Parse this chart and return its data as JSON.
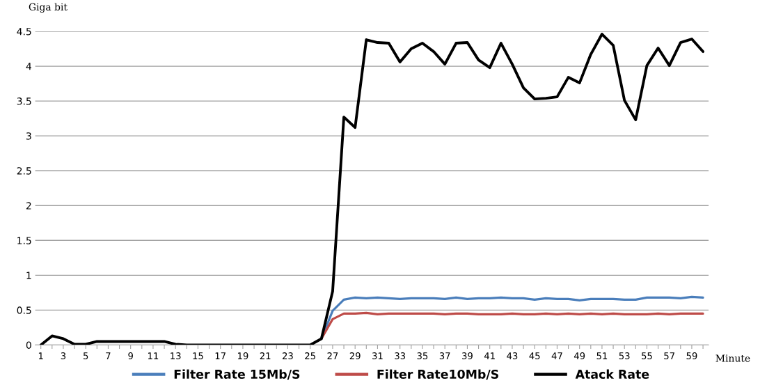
{
  "chart_data": {
    "type": "line",
    "ylabel": "Giga bit",
    "xlabel": "Minute",
    "categories": [
      "1",
      null,
      "3",
      null,
      "5",
      null,
      "7",
      null,
      "9",
      null,
      "11",
      null,
      "13",
      null,
      "15",
      null,
      "17",
      null,
      "19",
      null,
      "21",
      null,
      "23",
      null,
      "25",
      null,
      "27",
      null,
      "29",
      null,
      "31",
      null,
      "33",
      null,
      "35",
      null,
      "37",
      null,
      "39",
      null,
      "41",
      null,
      "43",
      null,
      "45",
      null,
      "47",
      null,
      "49",
      null,
      "51",
      null,
      "53",
      null,
      "55",
      null,
      "57",
      null,
      "59",
      null
    ],
    "series": [
      {
        "name": "Filter Rate 15Mb/S",
        "color": "#4a7ebb",
        "values": [
          null,
          null,
          null,
          null,
          null,
          null,
          null,
          null,
          null,
          null,
          null,
          null,
          null,
          null,
          null,
          null,
          null,
          null,
          null,
          null,
          null,
          null,
          null,
          null,
          null,
          0.09,
          0.49,
          0.65,
          0.68,
          0.67,
          0.68,
          0.67,
          0.66,
          0.67,
          0.67,
          0.67,
          0.66,
          0.68,
          0.66,
          0.67,
          0.67,
          0.68,
          0.67,
          0.67,
          0.65,
          0.67,
          0.66,
          0.66,
          0.64,
          0.66,
          0.66,
          0.66,
          0.65,
          0.65,
          0.68,
          0.68,
          0.68,
          0.67,
          0.69,
          0.68
        ]
      },
      {
        "name": "Filter Rate10Mb/S",
        "color": "#be4b48",
        "values": [
          null,
          null,
          null,
          null,
          null,
          null,
          null,
          null,
          null,
          null,
          null,
          null,
          null,
          null,
          null,
          null,
          null,
          null,
          null,
          null,
          null,
          null,
          null,
          null,
          null,
          0.09,
          0.37,
          0.45,
          0.45,
          0.46,
          0.44,
          0.45,
          0.45,
          0.45,
          0.45,
          0.45,
          0.44,
          0.45,
          0.45,
          0.44,
          0.44,
          0.44,
          0.45,
          0.44,
          0.44,
          0.45,
          0.44,
          0.45,
          0.44,
          0.45,
          0.44,
          0.45,
          0.44,
          0.44,
          0.44,
          0.45,
          0.44,
          0.45,
          0.45,
          0.45
        ]
      },
      {
        "name": "Atack Rate",
        "color": "#000000",
        "values": [
          0,
          0.13,
          0.09,
          0.01,
          0.01,
          0.05,
          0.05,
          0.05,
          0.05,
          0.05,
          0.05,
          0.05,
          0.01,
          0,
          0,
          0,
          0,
          0,
          0,
          0,
          0,
          0,
          0,
          0,
          0,
          0.09,
          0.77,
          3.27,
          3.12,
          4.38,
          4.34,
          4.33,
          4.06,
          4.25,
          4.33,
          4.21,
          4.03,
          4.33,
          4.34,
          4.09,
          3.98,
          4.33,
          4.03,
          3.69,
          3.53,
          3.54,
          3.56,
          3.84,
          3.76,
          4.17,
          4.46,
          4.3,
          3.51,
          3.23,
          4.01,
          4.26,
          4.01,
          4.34,
          4.39,
          4.21
        ]
      }
    ],
    "ylim": [
      0,
      4.5
    ],
    "yticks": [
      0,
      0.5,
      1,
      1.5,
      2,
      2.5,
      3,
      3.5,
      4,
      4.5
    ],
    "grid": "y",
    "legend": "bottom",
    "marker": "none",
    "line_style": "solid"
  }
}
